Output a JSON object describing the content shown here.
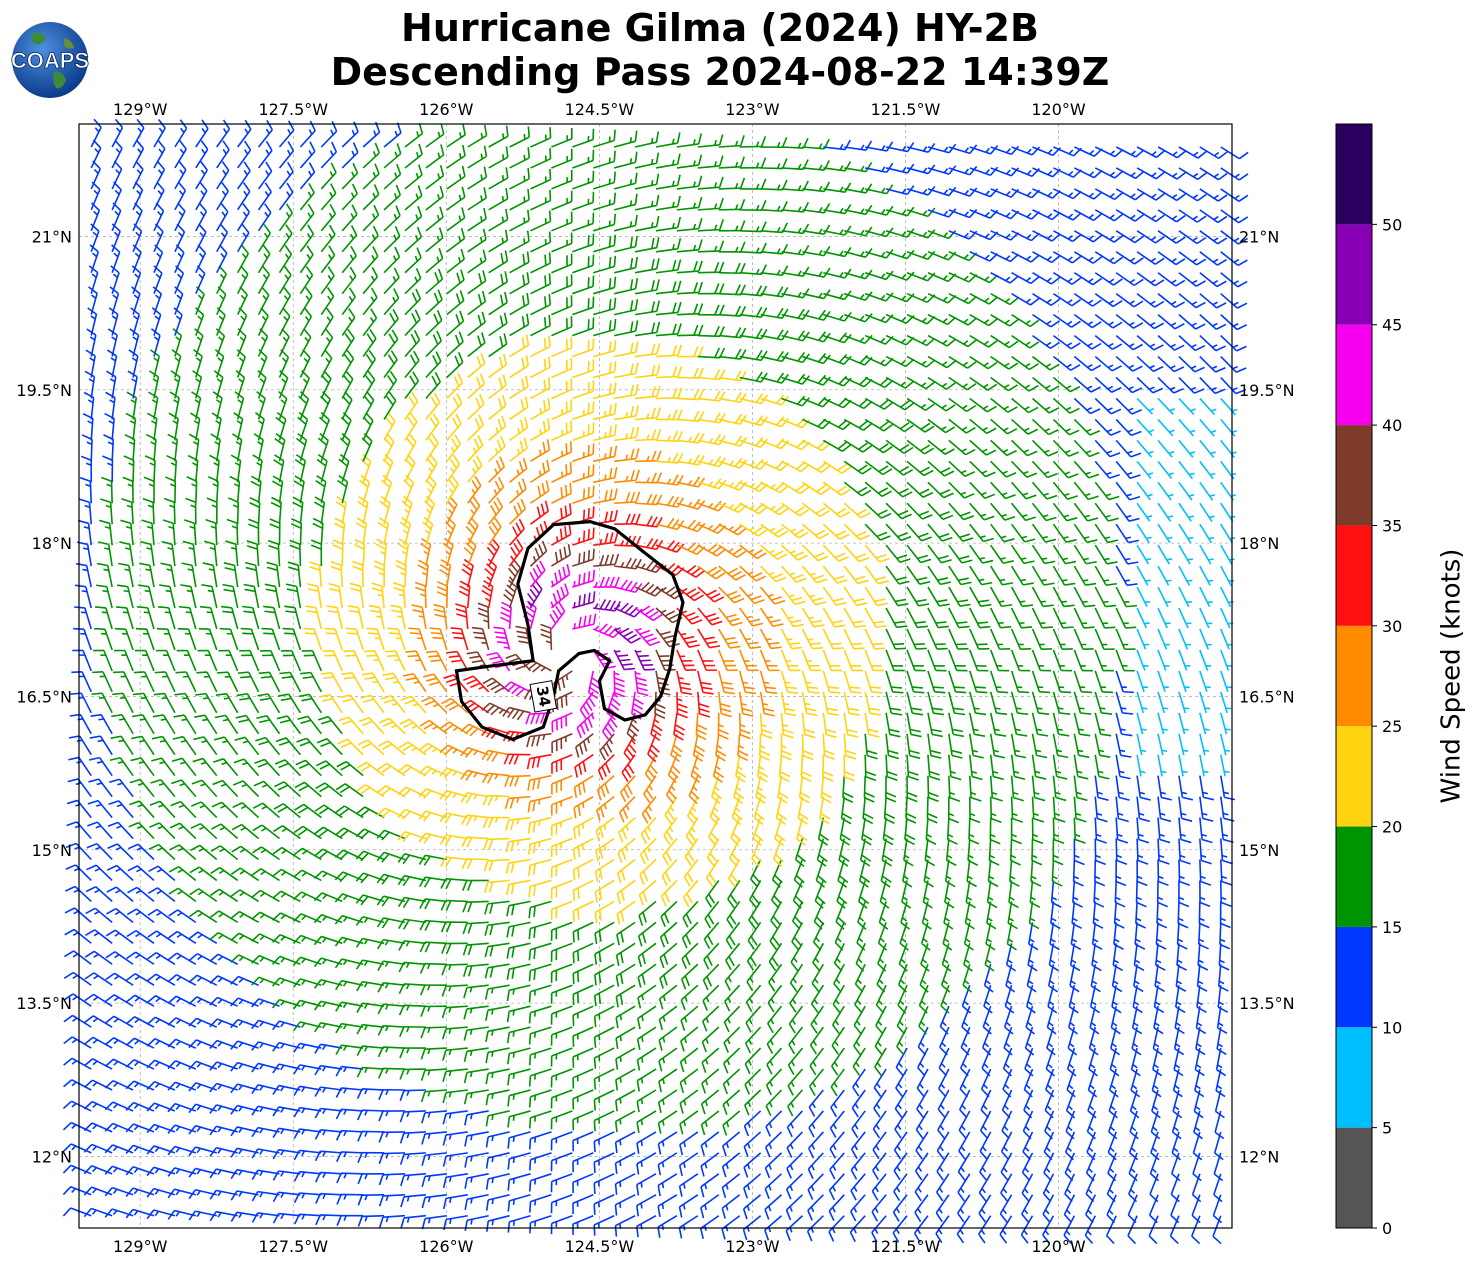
{
  "title": {
    "line1": "Hurricane Gilma (2024) HY-2B",
    "line2": "Descending Pass 2024-08-22 14:39Z"
  },
  "logo": {
    "text": "COAPS",
    "icon": "globe-icon"
  },
  "map": {
    "lon_range": [
      -129.6,
      -118.3
    ],
    "lat_range": [
      11.3,
      22.1
    ],
    "center": {
      "lon": -124.8,
      "lat": 16.9
    },
    "grid": true,
    "lon_ticks": [
      {
        "value": -129,
        "label": "129°W"
      },
      {
        "value": -127.5,
        "label": "127.5°W"
      },
      {
        "value": -126,
        "label": "126°W"
      },
      {
        "value": -124.5,
        "label": "124.5°W"
      },
      {
        "value": -123,
        "label": "123°W"
      },
      {
        "value": -121.5,
        "label": "121.5°W"
      },
      {
        "value": -120,
        "label": "120°W"
      }
    ],
    "lat_ticks": [
      {
        "value": 12,
        "label": "12°N"
      },
      {
        "value": 13.5,
        "label": "13.5°N"
      },
      {
        "value": 15,
        "label": "15°N"
      },
      {
        "value": 16.5,
        "label": "16.5°N"
      },
      {
        "value": 18,
        "label": "18°N"
      },
      {
        "value": 19.5,
        "label": "19.5°N"
      },
      {
        "value": 21,
        "label": "21°N"
      }
    ],
    "contour": {
      "level_label": "34",
      "points": [
        [
          -124.59,
          18.21
        ],
        [
          -124.35,
          18.14
        ],
        [
          -124.1,
          17.94
        ],
        [
          -123.78,
          17.69
        ],
        [
          -123.68,
          17.42
        ],
        [
          -123.76,
          17.08
        ],
        [
          -123.81,
          16.77
        ],
        [
          -123.9,
          16.5
        ],
        [
          -124.05,
          16.32
        ],
        [
          -124.25,
          16.27
        ],
        [
          -124.45,
          16.38
        ],
        [
          -124.5,
          16.65
        ],
        [
          -124.4,
          16.85
        ],
        [
          -124.55,
          16.95
        ],
        [
          -124.7,
          16.92
        ],
        [
          -124.9,
          16.75
        ],
        [
          -124.95,
          16.5
        ],
        [
          -125.05,
          16.2
        ],
        [
          -125.35,
          16.08
        ],
        [
          -125.65,
          16.2
        ],
        [
          -125.85,
          16.45
        ],
        [
          -125.9,
          16.75
        ],
        [
          -125.55,
          16.8
        ],
        [
          -125.15,
          16.85
        ],
        [
          -125.2,
          17.2
        ],
        [
          -125.3,
          17.6
        ],
        [
          -125.2,
          17.95
        ],
        [
          -124.95,
          18.18
        ]
      ]
    }
  },
  "wind_field": {
    "type": "wind-barbs",
    "units": "knots",
    "vortex_center": {
      "lon": -124.8,
      "lat": 16.9
    },
    "radius_max_wind_deg": 0.6,
    "max_speed_kt": 45
  },
  "colorbar": {
    "label": "Wind Speed (knots)",
    "bins": [
      {
        "min": 0,
        "max": 5,
        "color": "#555555"
      },
      {
        "min": 5,
        "max": 10,
        "color": "#00bfff"
      },
      {
        "min": 10,
        "max": 15,
        "color": "#0038ff"
      },
      {
        "min": 15,
        "max": 20,
        "color": "#009400"
      },
      {
        "min": 20,
        "max": 25,
        "color": "#ffd30f"
      },
      {
        "min": 25,
        "max": 30,
        "color": "#ff8a00"
      },
      {
        "min": 30,
        "max": 35,
        "color": "#ff0f0f"
      },
      {
        "min": 35,
        "max": 40,
        "color": "#7f3b2a"
      },
      {
        "min": 40,
        "max": 45,
        "color": "#f700f0"
      },
      {
        "min": 45,
        "max": 50,
        "color": "#8700b5"
      },
      {
        "min": 50,
        "max": 55,
        "color": "#2a005e"
      }
    ],
    "tick_labels": [
      "0",
      "5",
      "10",
      "15",
      "20",
      "25",
      "30",
      "35",
      "40",
      "45",
      "50"
    ]
  }
}
